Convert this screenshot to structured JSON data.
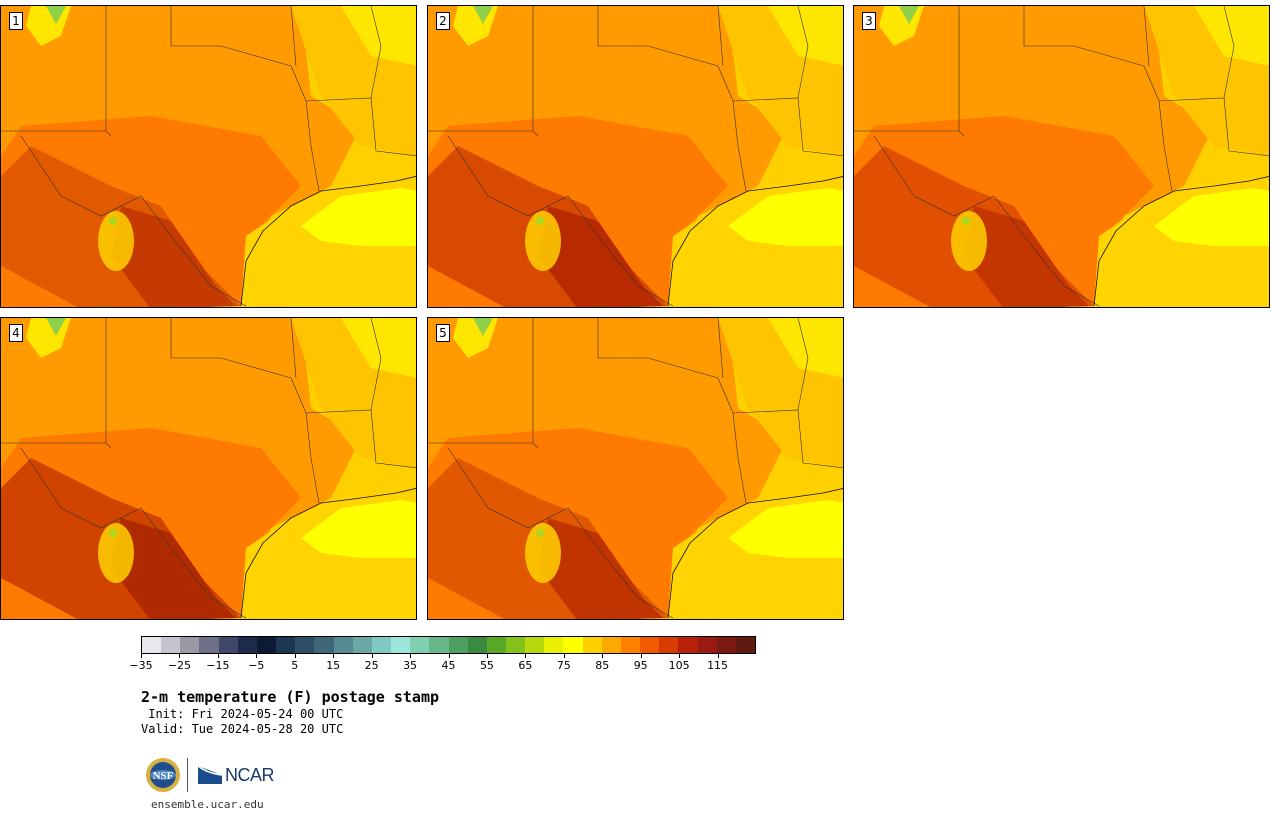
{
  "panels": [
    {
      "label": "1"
    },
    {
      "label": "2"
    },
    {
      "label": "3"
    },
    {
      "label": "4"
    },
    {
      "label": "5"
    }
  ],
  "colorbar": {
    "ticks": [
      "−35",
      "−25",
      "−15",
      "−5",
      "5",
      "15",
      "25",
      "35",
      "45",
      "55",
      "65",
      "75",
      "85",
      "95",
      "105",
      "115"
    ],
    "colors": [
      "#e8e8ec",
      "#c4c4cc",
      "#9a9aa6",
      "#6e7088",
      "#40486a",
      "#1e2a4a",
      "#0e1a34",
      "#1c3550",
      "#2e4e66",
      "#3e6878",
      "#558a90",
      "#6aa8a8",
      "#80c8c4",
      "#9ae6dc",
      "#7ed0b0",
      "#66b888",
      "#4ea060",
      "#3a8a40",
      "#5aa828",
      "#86c01a",
      "#b8d80e",
      "#e8f000",
      "#ffff00",
      "#ffd000",
      "#ffa800",
      "#ff8000",
      "#f05a00",
      "#d83c00",
      "#b82008",
      "#981a10",
      "#7a1a10",
      "#5e1a10"
    ]
  },
  "title": "2-m temperature (F) postage stamp",
  "init": " Init: Fri 2024-05-24 00 UTC",
  "valid": "Valid: Tue 2024-05-28 20 UTC",
  "logos": {
    "nsf": "NSF",
    "ncar": "NCAR"
  },
  "site": "ensemble.ucar.edu"
}
